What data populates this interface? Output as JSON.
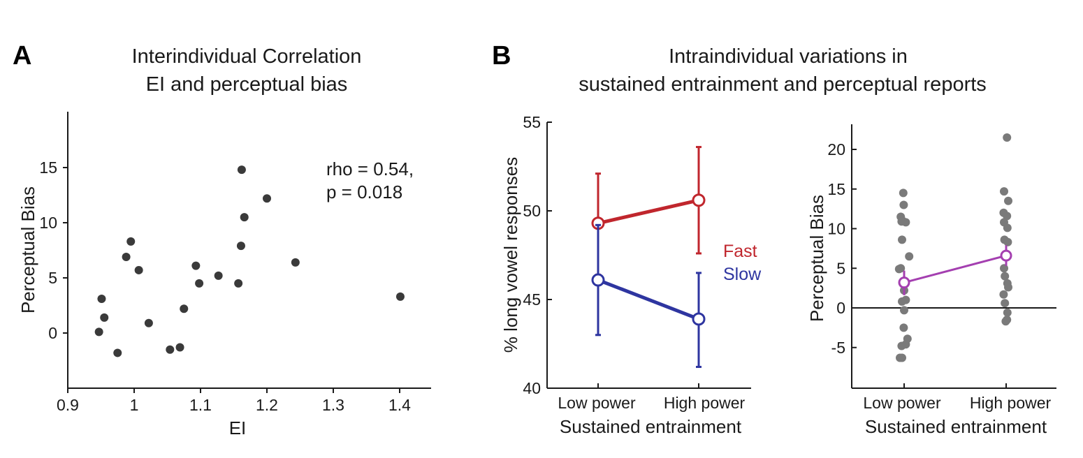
{
  "panels": {
    "a_letter": "A",
    "b_letter": "B",
    "a_title_line1": "Interindividual Correlation",
    "a_title_line2": "EI and perceptual bias",
    "b_title_line1": "Intraindividual variations in",
    "b_title_line2": "sustained entrainment and perceptual reports"
  },
  "chart_data": [
    {
      "id": "A",
      "type": "scatter",
      "xlabel": "EI",
      "ylabel": "Perceptual Bias",
      "xlim": [
        0.9,
        1.45
      ],
      "ylim": [
        -5,
        20
      ],
      "xticks": [
        "0.9",
        "1",
        "1.1",
        "1.2",
        "1.3",
        "1.4"
      ],
      "yticks": [
        "0",
        "5",
        "10",
        "15"
      ],
      "annotation_line1": "rho = 0.54,",
      "annotation_line2": "p = 0.018",
      "marker_color": "#3a3a3a",
      "x": [
        0.947,
        0.951,
        0.955,
        0.975,
        0.988,
        0.995,
        1.007,
        1.022,
        1.054,
        1.069,
        1.075,
        1.093,
        1.098,
        1.127,
        1.157,
        1.161,
        1.162,
        1.166,
        1.2,
        1.243,
        1.401
      ],
      "y": [
        0.1,
        3.1,
        1.4,
        -1.8,
        6.9,
        8.3,
        5.7,
        0.9,
        -1.5,
        -1.3,
        2.2,
        6.1,
        4.5,
        5.2,
        4.5,
        7.9,
        14.8,
        10.5,
        12.2,
        6.4,
        3.3
      ]
    },
    {
      "id": "B-left",
      "type": "line",
      "categories": [
        "Low power",
        "High power"
      ],
      "xlabel": "Sustained entrainment",
      "ylabel": "% long vowel responses",
      "ylim": [
        40,
        55
      ],
      "yticks": [
        "40",
        "45",
        "50",
        "55"
      ],
      "series": [
        {
          "name": "Fast",
          "color": "#c0262d",
          "values": [
            49.3,
            50.6
          ],
          "err_low": [
            46.4,
            47.6
          ],
          "err_high": [
            52.1,
            53.6
          ]
        },
        {
          "name": "Slow",
          "color": "#2e35a0",
          "values": [
            46.1,
            43.9
          ],
          "err_low": [
            43.0,
            41.2
          ],
          "err_high": [
            49.2,
            46.5
          ]
        }
      ]
    },
    {
      "id": "B-right",
      "type": "scatter",
      "categories": [
        "Low power",
        "High power"
      ],
      "xlabel": "Sustained entrainment",
      "ylabel": "Perceptual Bias",
      "ylim": [
        -10,
        23
      ],
      "yticks": [
        "-5",
        "0",
        "5",
        "10",
        "15",
        "20"
      ],
      "zero_line": true,
      "point_color": "#7a7a7a",
      "mean_color": "#a43fb0",
      "mean": [
        3.2,
        6.6
      ],
      "sem_low": [
        1.6,
        5.3
      ],
      "sem_high": [
        4.7,
        7.9
      ],
      "points": [
        {
          "group": 0,
          "dx": -0.02,
          "y": 14.5
        },
        {
          "group": 0,
          "dx": -0.01,
          "y": 13.0
        },
        {
          "group": 0,
          "dx": -0.08,
          "y": 11.5
        },
        {
          "group": 0,
          "dx": -0.04,
          "y": 11.0
        },
        {
          "group": 0,
          "dx": 0.04,
          "y": 10.8
        },
        {
          "group": 0,
          "dx": -0.06,
          "y": 10.9
        },
        {
          "group": 0,
          "dx": -0.05,
          "y": 8.6
        },
        {
          "group": 0,
          "dx": 0.12,
          "y": 6.5
        },
        {
          "group": 0,
          "dx": -0.12,
          "y": 4.9
        },
        {
          "group": 0,
          "dx": -0.08,
          "y": 5.0
        },
        {
          "group": 0,
          "dx": 0.0,
          "y": 2.2
        },
        {
          "group": 0,
          "dx": 0.04,
          "y": 1.0
        },
        {
          "group": 0,
          "dx": -0.05,
          "y": 0.8
        },
        {
          "group": 0,
          "dx": 0.0,
          "y": -0.3
        },
        {
          "group": 0,
          "dx": -0.01,
          "y": -2.5
        },
        {
          "group": 0,
          "dx": 0.08,
          "y": -3.9
        },
        {
          "group": 0,
          "dx": 0.04,
          "y": -4.6
        },
        {
          "group": 0,
          "dx": -0.06,
          "y": -4.8
        },
        {
          "group": 0,
          "dx": -0.1,
          "y": -6.3
        },
        {
          "group": 0,
          "dx": -0.05,
          "y": -6.3
        },
        {
          "group": 1,
          "dx": 0.02,
          "y": 21.5
        },
        {
          "group": 1,
          "dx": -0.05,
          "y": 14.7
        },
        {
          "group": 1,
          "dx": 0.05,
          "y": 13.5
        },
        {
          "group": 1,
          "dx": -0.06,
          "y": 12.0
        },
        {
          "group": 1,
          "dx": 0.02,
          "y": 11.6
        },
        {
          "group": 1,
          "dx": -0.05,
          "y": 10.8
        },
        {
          "group": 1,
          "dx": 0.03,
          "y": 10.1
        },
        {
          "group": 1,
          "dx": -0.04,
          "y": 8.6
        },
        {
          "group": 1,
          "dx": 0.04,
          "y": 8.3
        },
        {
          "group": 1,
          "dx": -0.05,
          "y": 5.0
        },
        {
          "group": 1,
          "dx": -0.03,
          "y": 4.0
        },
        {
          "group": 1,
          "dx": 0.03,
          "y": 3.1
        },
        {
          "group": 1,
          "dx": 0.05,
          "y": 2.6
        },
        {
          "group": 1,
          "dx": -0.06,
          "y": 1.7
        },
        {
          "group": 1,
          "dx": -0.03,
          "y": 0.6
        },
        {
          "group": 1,
          "dx": 0.03,
          "y": -0.6
        },
        {
          "group": 1,
          "dx": 0.02,
          "y": -1.5
        },
        {
          "group": 1,
          "dx": -0.01,
          "y": -1.7
        }
      ]
    }
  ]
}
